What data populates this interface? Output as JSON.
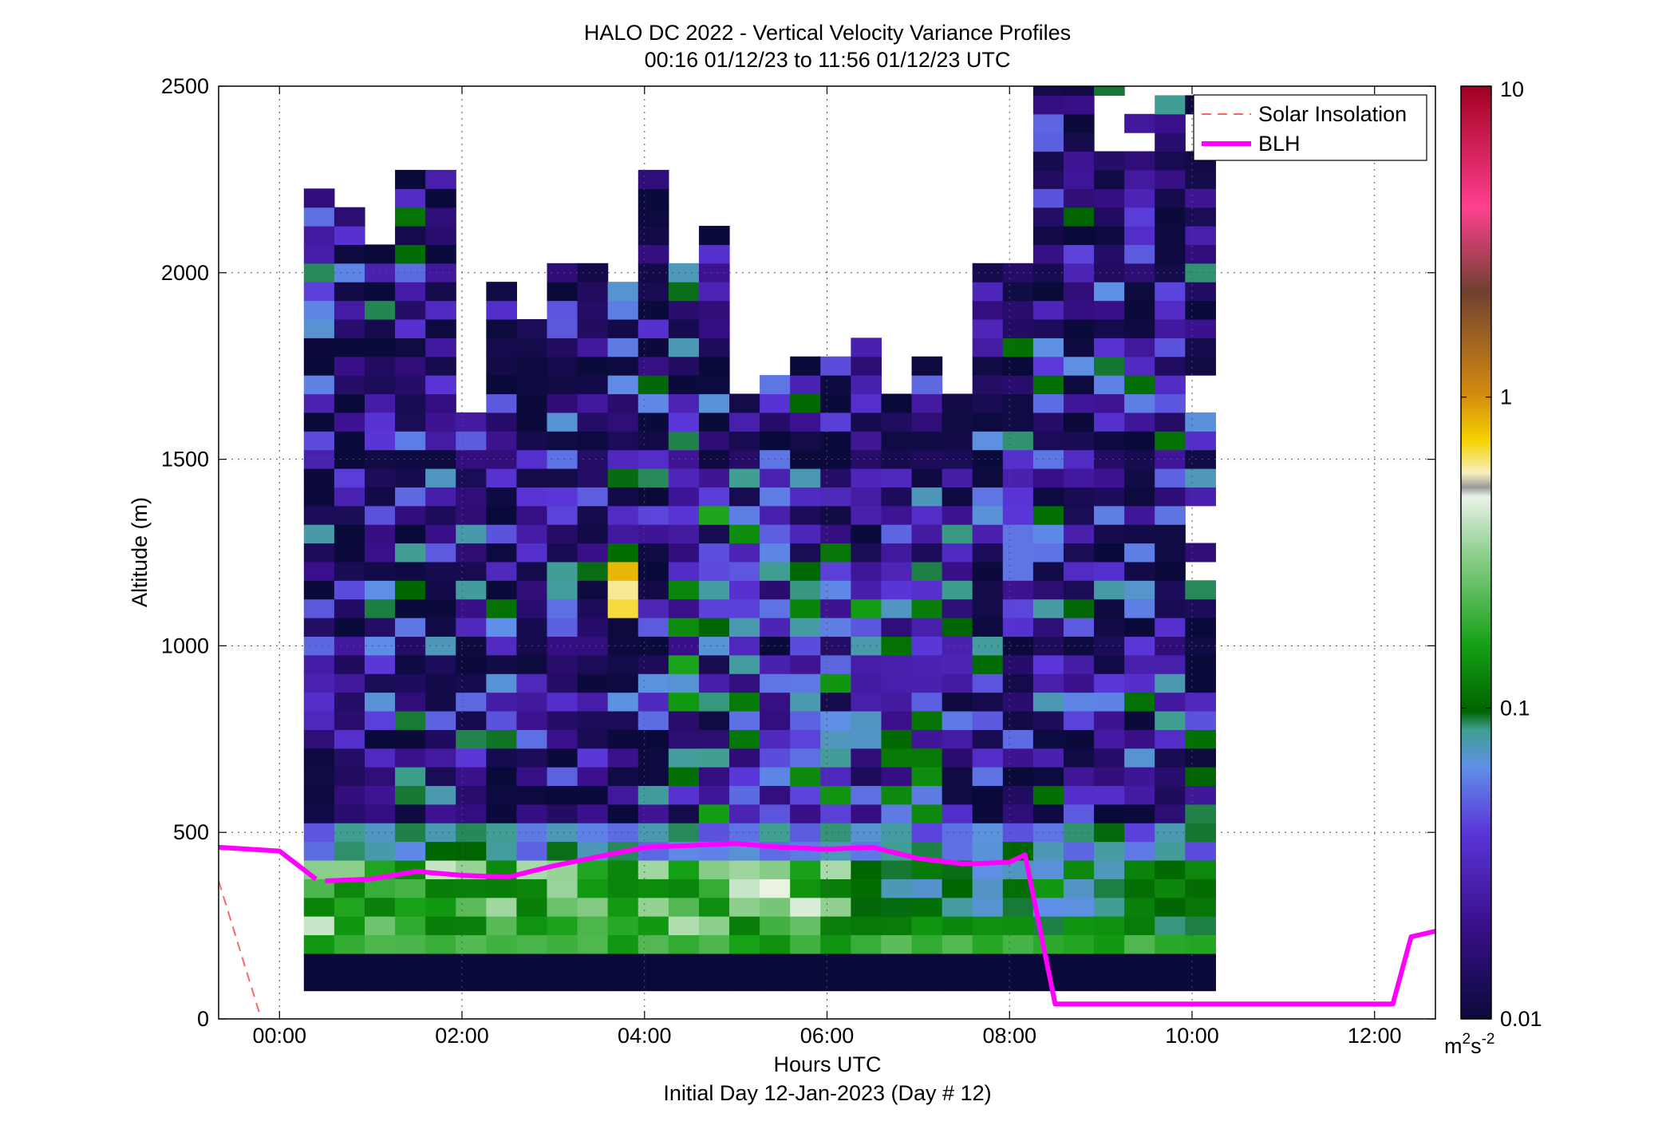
{
  "chart_data": {
    "type": "heatmap",
    "title": "HALO DC 2022 - Vertical Velocity Variance Profiles",
    "subtitle": "00:16 01/12/23 to 11:56 01/12/23  UTC",
    "xlabel": "Hours UTC",
    "xlabel2": "Initial Day 12-Jan-2023 (Day # 12)",
    "ylabel": "Altitude (m)",
    "xlim": [
      -0.667,
      12.667
    ],
    "ylim": [
      0,
      2500
    ],
    "x_ticks": [
      0,
      2,
      4,
      6,
      8,
      10,
      12
    ],
    "x_tick_labels": [
      "00:00",
      "02:00",
      "04:00",
      "06:00",
      "08:00",
      "10:00",
      "12:00"
    ],
    "y_ticks": [
      0,
      500,
      1000,
      1500,
      2000,
      2500
    ],
    "y_tick_labels": [
      "0",
      "500",
      "1000",
      "1500",
      "2000",
      "2500"
    ],
    "grid": true,
    "legend_position": "top-right",
    "legend": [
      {
        "name": "Solar Insolation",
        "color": "#ff6666",
        "style": "dashed"
      },
      {
        "name": "BLH",
        "color": "#ff00ff",
        "style": "solid"
      }
    ],
    "colorbar": {
      "scale": "log",
      "range": [
        0.01,
        10
      ],
      "tick_values": [
        0.01,
        0.1,
        1,
        10
      ],
      "tick_labels": [
        "0.01",
        "0.1",
        "1",
        "10"
      ],
      "unit_base": "m",
      "unit_exp1": "2",
      "unit_mid": "s",
      "unit_exp2": "-2"
    },
    "heatmap": {
      "time_start": 0.267,
      "time_step": 0.333,
      "n_time": 30,
      "alt_start": 75,
      "alt_step": 50,
      "n_alt": 49
    },
    "blh": {
      "times": [
        -0.667,
        0,
        0.4,
        0.5,
        1.0,
        1.5,
        2.0,
        2.5,
        3.0,
        3.5,
        4.0,
        4.5,
        5.0,
        5.5,
        6.0,
        6.5,
        7.0,
        7.5,
        8.0,
        8.17,
        8.5,
        9.0,
        10.0,
        11.0,
        12.0,
        12.2,
        12.4,
        12.667
      ],
      "values": [
        460,
        450,
        375,
        370,
        375,
        395,
        385,
        380,
        410,
        435,
        460,
        465,
        470,
        460,
        455,
        460,
        430,
        415,
        420,
        440,
        40,
        40,
        40,
        40,
        40,
        40,
        220,
        235
      ],
      "segment_break_after_index": 2
    },
    "solar_insolation": {
      "times": [
        -0.667,
        -0.2
      ],
      "values": [
        370,
        0
      ]
    }
  }
}
